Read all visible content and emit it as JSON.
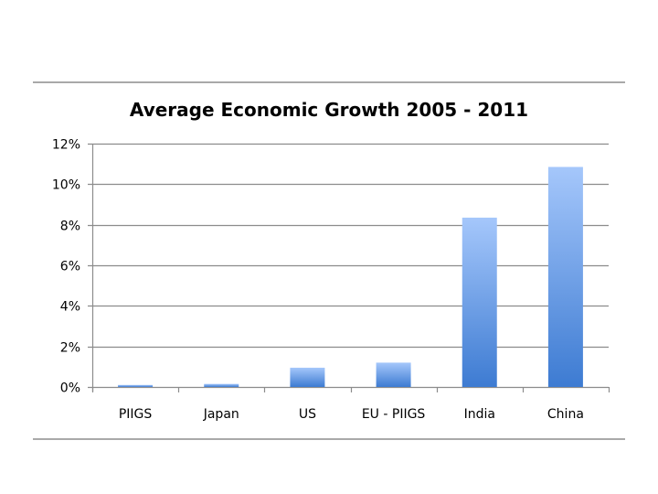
{
  "chart_data": {
    "type": "bar",
    "title": "Average Economic Growth 2005 - 2011",
    "categories": [
      "PIIGS",
      "Japan",
      "US",
      "EU - PIIGS",
      "India",
      "China"
    ],
    "values": [
      0.1,
      0.15,
      0.95,
      1.2,
      8.35,
      10.85
    ],
    "value_unit": "%",
    "ylim": [
      0,
      12
    ],
    "yticks": [
      0,
      2,
      4,
      6,
      8,
      10,
      12
    ],
    "ytick_labels": [
      "0%",
      "2%",
      "4%",
      "6%",
      "8%",
      "10%",
      "12%"
    ],
    "xlabel": "",
    "ylabel": "",
    "grid": true,
    "legend": "none",
    "colors": {
      "bar_top": "#a5c7fb",
      "bar_bottom": "#3d7bd2",
      "gridline": "#8c8c8c",
      "axis": "#8c8c8c",
      "rule": "#a9a9a9"
    }
  }
}
